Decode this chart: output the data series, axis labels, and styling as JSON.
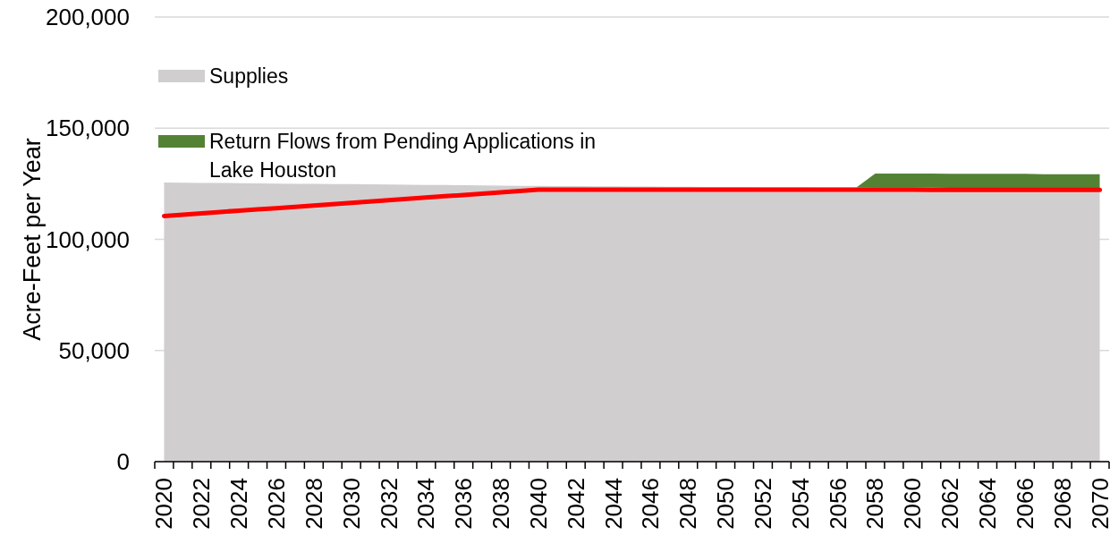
{
  "chart_data": {
    "type": "area",
    "ylabel": "Acre-Feet per Year",
    "categories": [
      "2020",
      null,
      "2022",
      null,
      "2024",
      null,
      "2026",
      null,
      "2028",
      null,
      "2030",
      null,
      "2032",
      null,
      "2034",
      null,
      "2036",
      null,
      "2038",
      null,
      "2040",
      null,
      "2042",
      null,
      "2044",
      null,
      "2046",
      null,
      "2048",
      null,
      "2050",
      null,
      "2052",
      null,
      "2054",
      null,
      "2056",
      null,
      "2058",
      null,
      "2060",
      null,
      "2062",
      null,
      "2064",
      null,
      "2066",
      null,
      "2068",
      null,
      "2070"
    ],
    "series": [
      {
        "name": "Supplies",
        "color": "#d0cece",
        "values": [
          125600,
          125500,
          125400,
          125400,
          125300,
          125200,
          125100,
          125000,
          124900,
          124800,
          124800,
          124700,
          124600,
          124500,
          124400,
          124400,
          124300,
          124200,
          124100,
          124000,
          124000,
          123900,
          123900,
          123800,
          123800,
          123700,
          123700,
          123600,
          123600,
          123500,
          123500,
          123500,
          123400,
          123400,
          123400,
          123300,
          123300,
          123300,
          123200,
          123200,
          123200,
          123200,
          123100,
          123100,
          123100,
          123100,
          123100,
          123000,
          123000,
          123000,
          123000
        ]
      },
      {
        "name": "Return Flows from Pending Applications in Lake Houston",
        "color": "#548235",
        "values": [
          null,
          null,
          null,
          null,
          null,
          null,
          null,
          null,
          null,
          null,
          null,
          null,
          null,
          null,
          null,
          null,
          null,
          null,
          null,
          null,
          null,
          null,
          null,
          null,
          null,
          null,
          null,
          null,
          null,
          null,
          null,
          null,
          null,
          null,
          null,
          null,
          null,
          0,
          6400,
          6400,
          6400,
          6400,
          6400,
          6400,
          6400,
          6400,
          6400,
          6300,
          6300,
          6300,
          6300
        ]
      },
      {
        "type": "line",
        "color": "#ff0000",
        "values": [
          110500,
          111100,
          111700,
          112300,
          112900,
          113500,
          114000,
          114600,
          115200,
          115800,
          116400,
          117000,
          117600,
          118200,
          118800,
          119400,
          119900,
          120500,
          121100,
          121700,
          122300,
          122300,
          122300,
          122300,
          122300,
          122300,
          122300,
          122300,
          122300,
          122300,
          122300,
          122300,
          122300,
          122300,
          122300,
          122300,
          122300,
          122300,
          122300,
          122300,
          122300,
          122200,
          122200,
          122200,
          122200,
          122200,
          122200,
          122200,
          122200,
          122200,
          122200
        ]
      }
    ],
    "stacked": true,
    "ylim": [
      0,
      200000
    ],
    "yticks": [
      0,
      {
        "value": 50000,
        "label": "50,000"
      },
      {
        "value": 100000,
        "label": "100,000"
      },
      {
        "value": 150000,
        "label": "150,000"
      },
      {
        "value": 200000,
        "label": "200,000"
      }
    ],
    "grid": "y",
    "legend": "top left"
  }
}
